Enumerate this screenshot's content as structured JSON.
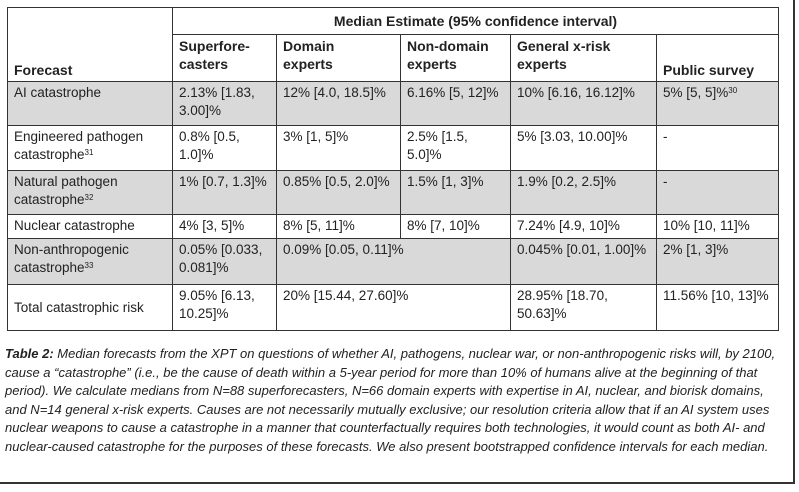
{
  "table": {
    "group_header": "Median Estimate (95% confidence interval)",
    "forecast_header": "Forecast",
    "columns": [
      "Superfore-\ncasters",
      "Domain\nexperts",
      "Non-domain\nexperts",
      "General x-risk\nexperts",
      "Public survey"
    ],
    "rows": [
      {
        "label": "AI catastrophe",
        "label_sup": "",
        "super": "2.13% [1.83, 3.00]%",
        "domain": "12% [4.0, 18.5]%",
        "nondomain": "6.16% [5, 12]%",
        "general": "10% [6.16, 16.12]%",
        "public": "5% [5, 5]%",
        "public_sup": "30"
      },
      {
        "label": "Engineered pathogen catastrophe",
        "label_sup": "31",
        "super": "0.8% [0.5, 1.0]%",
        "domain": "3% [1, 5]%",
        "nondomain": "2.5% [1.5, 5.0]%",
        "general": "5% [3.03, 10.00]%",
        "public": "-",
        "public_sup": ""
      },
      {
        "label": "Natural pathogen catastrophe",
        "label_sup": "32",
        "super": "1% [0.7, 1.3]%",
        "domain": "0.85% [0.5, 2.0]%",
        "nondomain": "1.5% [1, 3]%",
        "general": "1.9% [0.2, 2.5]%",
        "public": "-",
        "public_sup": ""
      },
      {
        "label": "Nuclear catastrophe",
        "label_sup": "",
        "super": "4% [3, 5]%",
        "domain": "8% [5, 11]%",
        "nondomain": "8% [7, 10]%",
        "general": "7.24% [4.9, 10]%",
        "public": "10% [10, 11]%",
        "public_sup": ""
      },
      {
        "label": "Non-anthropogenic catastrophe",
        "label_sup": "33",
        "super": "0.05% [0.033, 0.081]%",
        "domain_merged": "0.09% [0.05, 0.11]%",
        "general": "0.045% [0.01, 1.00]%",
        "public": "2% [1, 3]%",
        "public_sup": ""
      },
      {
        "label": "Total catastrophic risk",
        "label_sup": "",
        "super": "9.05% [6.13, 10.25]%",
        "domain_merged": "20% [15.44, 27.60]%",
        "general": "28.95% [18.70, 50.63]%",
        "public": "11.56% [10, 13]%",
        "public_sup": ""
      }
    ]
  },
  "caption": {
    "label": "Table 2:",
    "text": " Median forecasts from the XPT on questions of whether AI, pathogens, nuclear war, or non-anthropogenic risks will, by 2100, cause a “catastrophe” (i.e., be the cause of death within a 5-year period for more than 10% of humans alive at the beginning of that period). We calculate medians from N=88 superforecasters, N=66 domain experts with expertise in AI, nuclear, and biorisk domains, and N=14 general x-risk experts. Causes are not necessarily mutually exclusive; our resolution criteria allow that if an AI system uses nuclear weapons to cause a catastrophe in a manner that counterfactually requires both technologies, it would count as both AI- and nuclear-caused catastrophe for the purposes of these forecasts. We also present bootstrapped confidence intervals for each median."
  }
}
